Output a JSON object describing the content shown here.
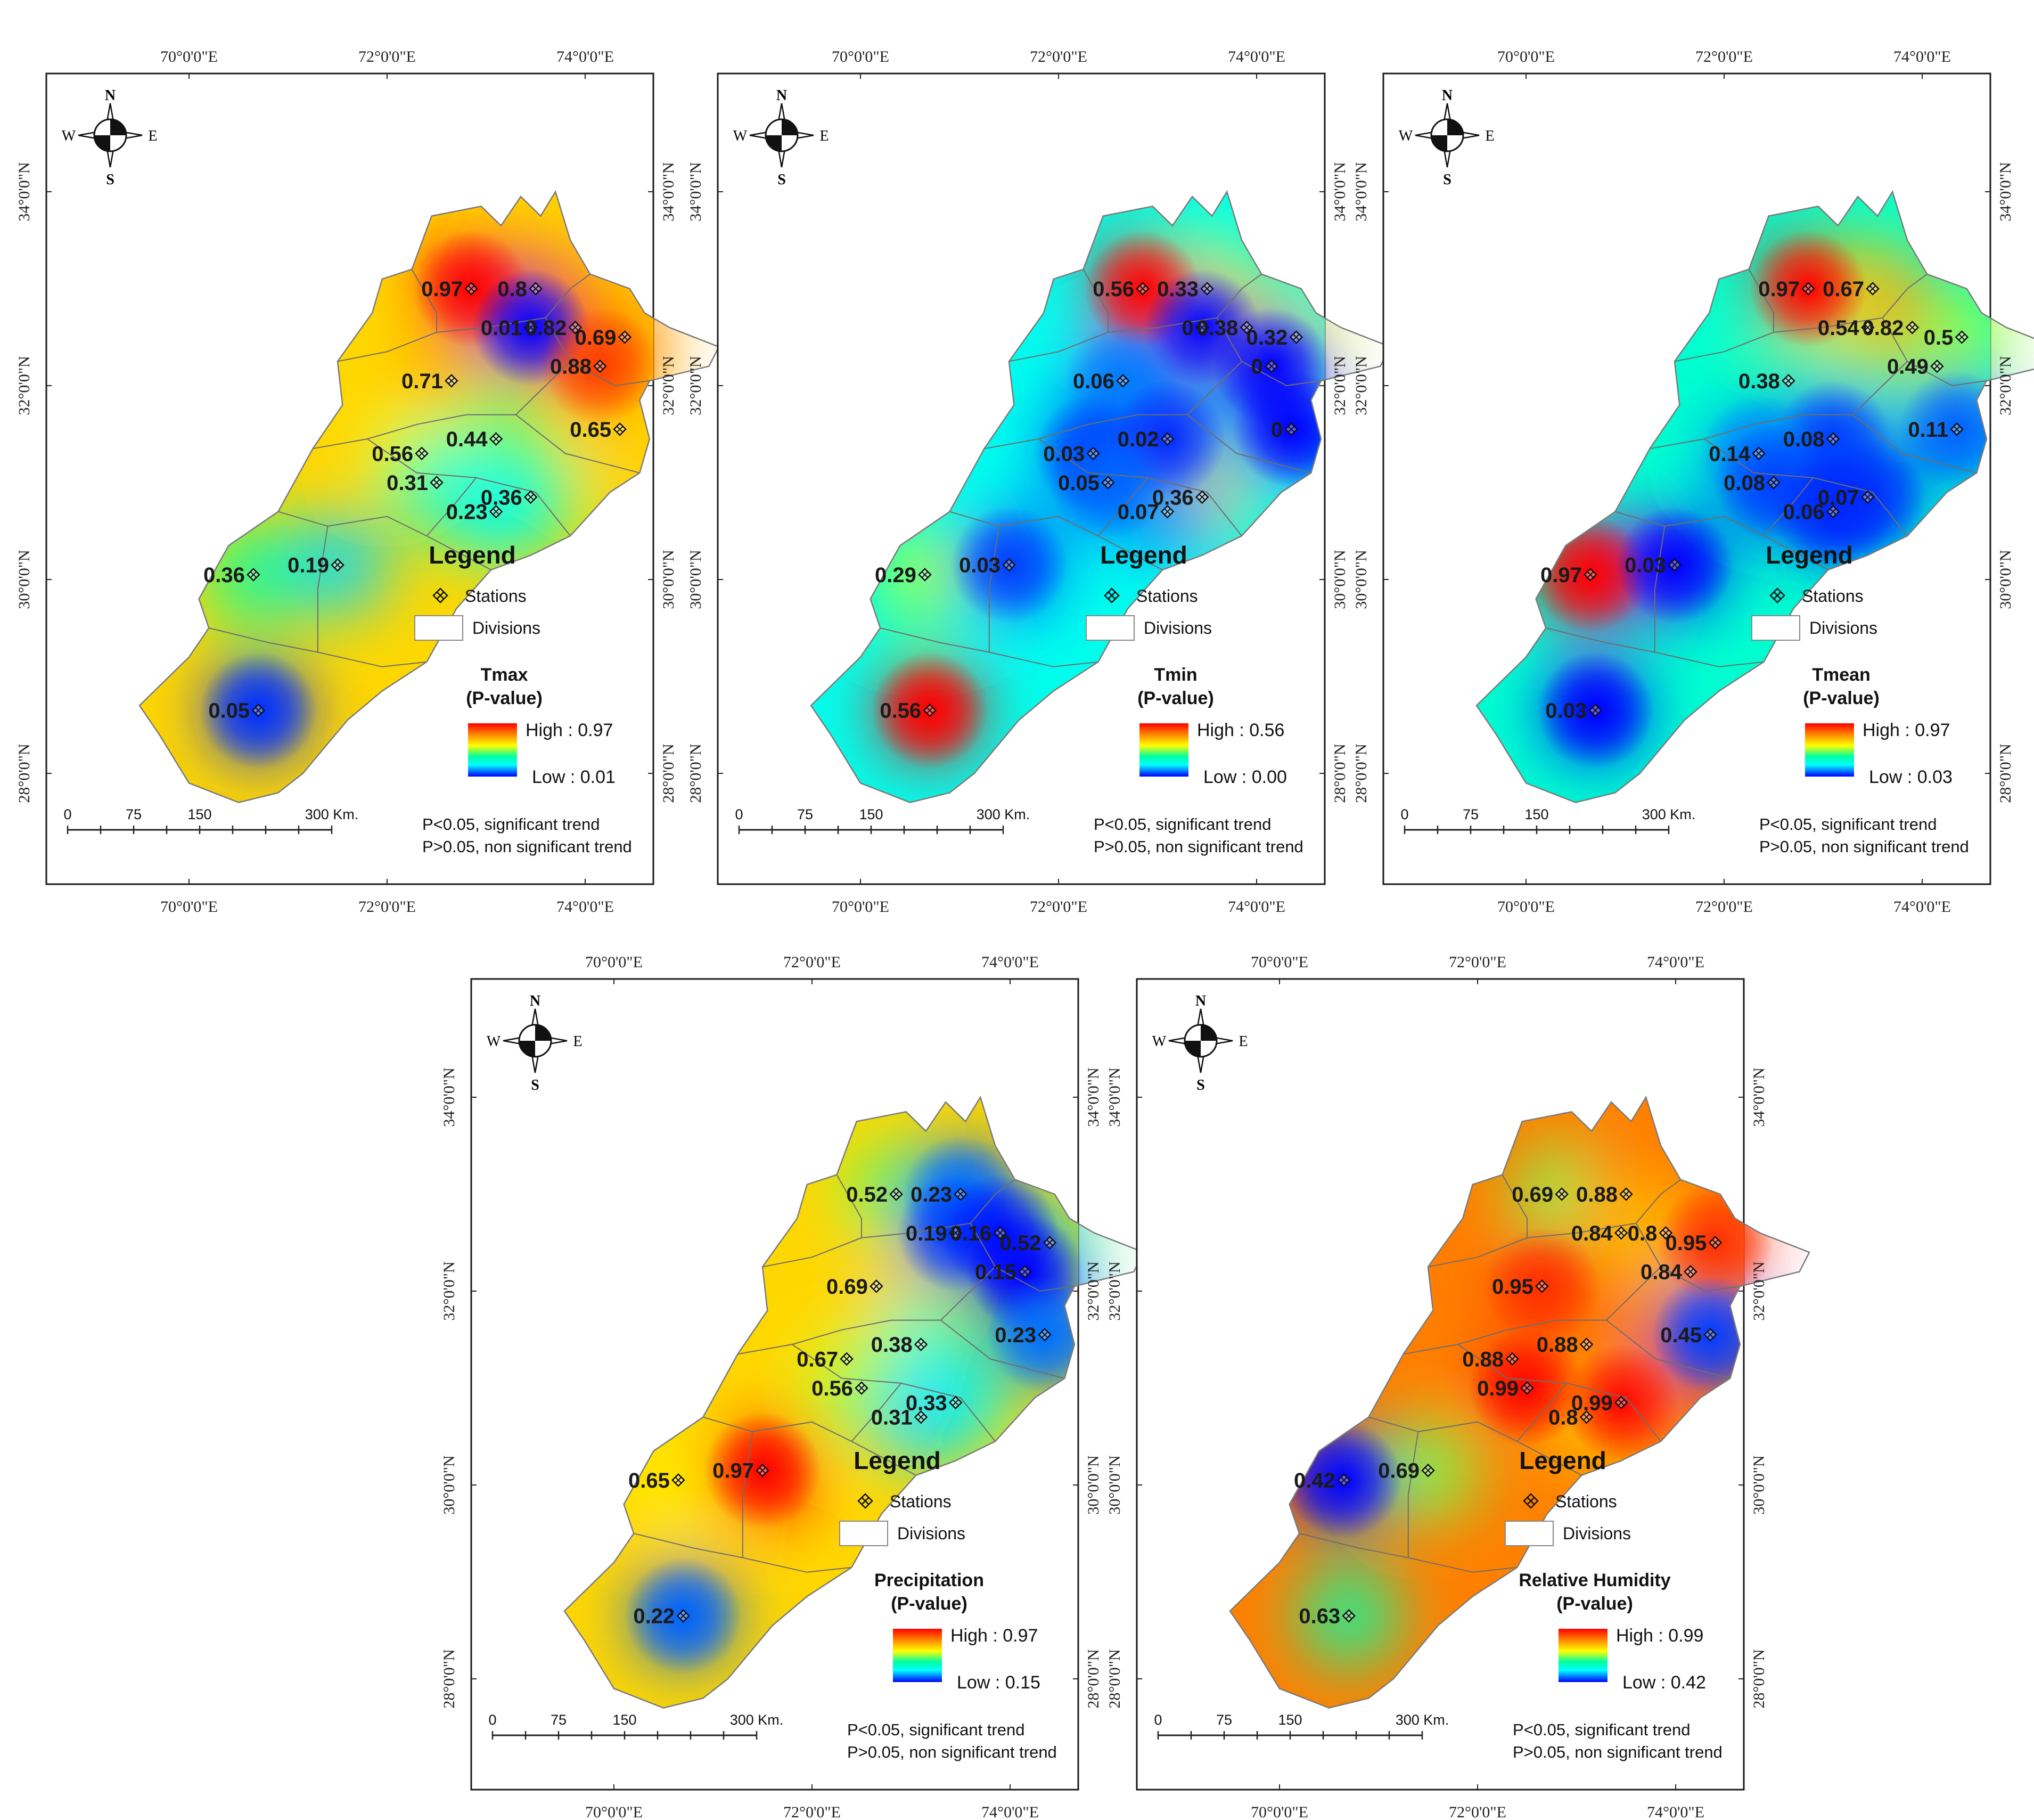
{
  "figure": {
    "axis_labels": {
      "lon": [
        "70°0'0\"E",
        "72°0'0\"E",
        "74°0'0\"E"
      ],
      "lat": [
        "34°0'0\"N",
        "32°0'0\"N",
        "30°0'0\"N",
        "28°0'0\"N"
      ]
    },
    "compass": {
      "n": "N",
      "s": "S",
      "e": "E",
      "w": "W"
    },
    "legend": {
      "title": "Legend",
      "stations": "Stations",
      "divisions": "Divisions",
      "note1": "P<0.05, significant trend",
      "note2": "P>0.05, non significant trend"
    },
    "scalebar": [
      "0",
      "75",
      "150",
      "300 Km."
    ],
    "colors": {
      "high": "#ff0000",
      "mid": "#ffff00",
      "cyan": "#00ffff",
      "low": "#0000ff"
    }
  },
  "maps": [
    {
      "id": "tmax",
      "title": [
        "Tmax",
        "(P-value)"
      ],
      "high": "High : 0.97",
      "low": "Low : 0.01",
      "background": 0.65,
      "stations": [
        {
          "label": "0.97",
          "lon": 72.85,
          "lat": 33.0,
          "v": 0.97
        },
        {
          "label": "0.8",
          "lon": 73.5,
          "lat": 33.0,
          "v": 0.8
        },
        {
          "label": "0.01",
          "lon": 73.45,
          "lat": 32.6,
          "v": 0.01
        },
        {
          "label": "0.82",
          "lon": 73.9,
          "lat": 32.6,
          "v": 0.82
        },
        {
          "label": "0.69",
          "lon": 74.4,
          "lat": 32.5,
          "v": 0.69
        },
        {
          "label": "0.88",
          "lon": 74.15,
          "lat": 32.2,
          "v": 0.88
        },
        {
          "label": "0.71",
          "lon": 72.65,
          "lat": 32.05,
          "v": 0.71
        },
        {
          "label": "0.65",
          "lon": 74.35,
          "lat": 31.55,
          "v": 0.65
        },
        {
          "label": "0.44",
          "lon": 73.1,
          "lat": 31.45,
          "v": 0.44
        },
        {
          "label": "0.56",
          "lon": 72.35,
          "lat": 31.3,
          "v": 0.56
        },
        {
          "label": "0.31",
          "lon": 72.5,
          "lat": 31.0,
          "v": 0.31
        },
        {
          "label": "0.36",
          "lon": 73.45,
          "lat": 30.85,
          "v": 0.36
        },
        {
          "label": "0.23",
          "lon": 73.1,
          "lat": 30.7,
          "v": 0.23
        },
        {
          "label": "0.36",
          "lon": 70.65,
          "lat": 30.05,
          "v": 0.36
        },
        {
          "label": "0.19",
          "lon": 71.5,
          "lat": 30.15,
          "v": 0.19
        },
        {
          "label": "0.05",
          "lon": 70.7,
          "lat": 28.65,
          "v": 0.05
        }
      ]
    },
    {
      "id": "tmin",
      "title": [
        "Tmin",
        "(P-value)"
      ],
      "high": "High : 0.56",
      "low": "Low : 0.00",
      "background": 0.25,
      "stations": [
        {
          "label": "0.56",
          "lon": 72.85,
          "lat": 33.0,
          "v": 0.56
        },
        {
          "label": "0.33",
          "lon": 73.5,
          "lat": 33.0,
          "v": 0.33
        },
        {
          "label": "0",
          "lon": 73.45,
          "lat": 32.6,
          "v": 0.0
        },
        {
          "label": "0.38",
          "lon": 73.9,
          "lat": 32.6,
          "v": 0.38
        },
        {
          "label": "0.32",
          "lon": 74.4,
          "lat": 32.5,
          "v": 0.32
        },
        {
          "label": "0",
          "lon": 74.15,
          "lat": 32.2,
          "v": 0.0
        },
        {
          "label": "0.06",
          "lon": 72.65,
          "lat": 32.05,
          "v": 0.06
        },
        {
          "label": "0",
          "lon": 74.35,
          "lat": 31.55,
          "v": 0.0
        },
        {
          "label": "0.02",
          "lon": 73.1,
          "lat": 31.45,
          "v": 0.02
        },
        {
          "label": "0.03",
          "lon": 72.35,
          "lat": 31.3,
          "v": 0.03
        },
        {
          "label": "0.05",
          "lon": 72.5,
          "lat": 31.0,
          "v": 0.05
        },
        {
          "label": "0.36",
          "lon": 73.45,
          "lat": 30.85,
          "v": 0.36
        },
        {
          "label": "0.07",
          "lon": 73.1,
          "lat": 30.7,
          "v": 0.07
        },
        {
          "label": "0.29",
          "lon": 70.65,
          "lat": 30.05,
          "v": 0.29
        },
        {
          "label": "0.03",
          "lon": 71.5,
          "lat": 30.15,
          "v": 0.03
        },
        {
          "label": "0.56",
          "lon": 70.7,
          "lat": 28.65,
          "v": 0.56
        }
      ]
    },
    {
      "id": "tmean",
      "title": [
        "Tmean",
        "(P-value)"
      ],
      "high": "High : 0.97",
      "low": "Low : 0.03",
      "background": 0.3,
      "stations": [
        {
          "label": "0.97",
          "lon": 72.85,
          "lat": 33.0,
          "v": 0.97
        },
        {
          "label": "0.67",
          "lon": 73.5,
          "lat": 33.0,
          "v": 0.67
        },
        {
          "label": "0.54",
          "lon": 73.45,
          "lat": 32.6,
          "v": 0.54
        },
        {
          "label": "0.82",
          "lon": 73.9,
          "lat": 32.6,
          "v": 0.82
        },
        {
          "label": "0.5",
          "lon": 74.4,
          "lat": 32.5,
          "v": 0.5
        },
        {
          "label": "0.49",
          "lon": 74.15,
          "lat": 32.2,
          "v": 0.49
        },
        {
          "label": "0.38",
          "lon": 72.65,
          "lat": 32.05,
          "v": 0.38
        },
        {
          "label": "0.11",
          "lon": 74.35,
          "lat": 31.55,
          "v": 0.11
        },
        {
          "label": "0.08",
          "lon": 73.1,
          "lat": 31.45,
          "v": 0.08
        },
        {
          "label": "0.14",
          "lon": 72.35,
          "lat": 31.3,
          "v": 0.14
        },
        {
          "label": "0.08",
          "lon": 72.5,
          "lat": 31.0,
          "v": 0.08
        },
        {
          "label": "0.07",
          "lon": 73.45,
          "lat": 30.85,
          "v": 0.07
        },
        {
          "label": "0.06",
          "lon": 73.1,
          "lat": 30.7,
          "v": 0.06
        },
        {
          "label": "0.97",
          "lon": 70.65,
          "lat": 30.05,
          "v": 0.97
        },
        {
          "label": "0.03",
          "lon": 71.5,
          "lat": 30.15,
          "v": 0.03
        },
        {
          "label": "0.03",
          "lon": 70.7,
          "lat": 28.65,
          "v": 0.03
        }
      ]
    },
    {
      "id": "precip",
      "title": [
        "Precipitation",
        "(P-value)"
      ],
      "high": "High : 0.97",
      "low": "Low : 0.15",
      "background": 0.65,
      "stations": [
        {
          "label": "0.52",
          "lon": 72.85,
          "lat": 33.0,
          "v": 0.52
        },
        {
          "label": "0.23",
          "lon": 73.5,
          "lat": 33.0,
          "v": 0.23
        },
        {
          "label": "0.19",
          "lon": 73.45,
          "lat": 32.6,
          "v": 0.19
        },
        {
          "label": "0.16",
          "lon": 73.9,
          "lat": 32.6,
          "v": 0.16
        },
        {
          "label": "0.52",
          "lon": 74.4,
          "lat": 32.5,
          "v": 0.52
        },
        {
          "label": "0.15",
          "lon": 74.15,
          "lat": 32.2,
          "v": 0.15
        },
        {
          "label": "0.69",
          "lon": 72.65,
          "lat": 32.05,
          "v": 0.69
        },
        {
          "label": "0.23",
          "lon": 74.35,
          "lat": 31.55,
          "v": 0.23
        },
        {
          "label": "0.38",
          "lon": 73.1,
          "lat": 31.45,
          "v": 0.38
        },
        {
          "label": "0.67",
          "lon": 72.35,
          "lat": 31.3,
          "v": 0.67
        },
        {
          "label": "0.56",
          "lon": 72.5,
          "lat": 31.0,
          "v": 0.56
        },
        {
          "label": "0.33",
          "lon": 73.45,
          "lat": 30.85,
          "v": 0.33
        },
        {
          "label": "0.31",
          "lon": 73.1,
          "lat": 30.7,
          "v": 0.31
        },
        {
          "label": "0.65",
          "lon": 70.65,
          "lat": 30.05,
          "v": 0.65
        },
        {
          "label": "0.97",
          "lon": 71.5,
          "lat": 30.15,
          "v": 0.97
        },
        {
          "label": "0.22",
          "lon": 70.7,
          "lat": 28.65,
          "v": 0.22
        }
      ]
    },
    {
      "id": "rh",
      "title": [
        "Relative Humidity",
        "(P-value)"
      ],
      "high": "High : 0.99",
      "low": "Low : 0.42",
      "background": 0.8,
      "stations": [
        {
          "label": "0.69",
          "lon": 72.85,
          "lat": 33.0,
          "v": 0.69
        },
        {
          "label": "0.88",
          "lon": 73.5,
          "lat": 33.0,
          "v": 0.88
        },
        {
          "label": "0.84",
          "lon": 73.45,
          "lat": 32.6,
          "v": 0.84
        },
        {
          "label": "0.8",
          "lon": 73.9,
          "lat": 32.6,
          "v": 0.8
        },
        {
          "label": "0.95",
          "lon": 74.4,
          "lat": 32.5,
          "v": 0.95
        },
        {
          "label": "0.84",
          "lon": 74.15,
          "lat": 32.2,
          "v": 0.84
        },
        {
          "label": "0.95",
          "lon": 72.65,
          "lat": 32.05,
          "v": 0.95
        },
        {
          "label": "0.45",
          "lon": 74.35,
          "lat": 31.55,
          "v": 0.45
        },
        {
          "label": "0.88",
          "lon": 73.1,
          "lat": 31.45,
          "v": 0.88
        },
        {
          "label": "0.88",
          "lon": 72.35,
          "lat": 31.3,
          "v": 0.88
        },
        {
          "label": "0.99",
          "lon": 72.5,
          "lat": 31.0,
          "v": 0.99
        },
        {
          "label": "0.99",
          "lon": 73.45,
          "lat": 30.85,
          "v": 0.99
        },
        {
          "label": "0.8",
          "lon": 73.1,
          "lat": 30.7,
          "v": 0.8
        },
        {
          "label": "0.42",
          "lon": 70.65,
          "lat": 30.05,
          "v": 0.42
        },
        {
          "label": "0.69",
          "lon": 71.5,
          "lat": 30.15,
          "v": 0.69
        },
        {
          "label": "0.63",
          "lon": 70.7,
          "lat": 28.65,
          "v": 0.63
        }
      ]
    }
  ]
}
